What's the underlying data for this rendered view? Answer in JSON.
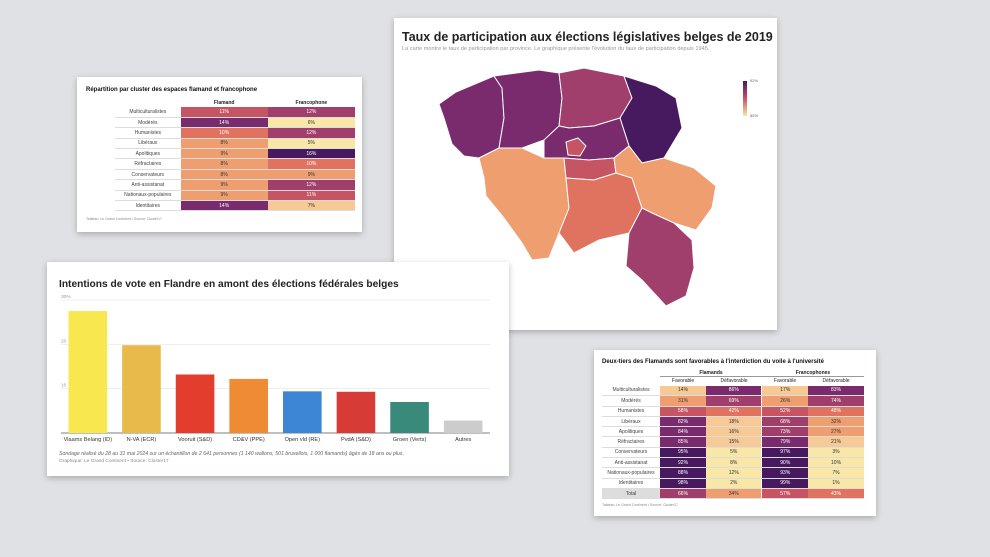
{
  "palette": [
    "#f8e7a6",
    "#f6c995",
    "#ef9e6f",
    "#e0735f",
    "#c65564",
    "#a13f6c",
    "#7a2b6e",
    "#47195f"
  ],
  "card1": {
    "title": "Répartition par cluster des espaces flamand et francophone",
    "source": "Tableau: Le Grand Continent • Source: Cluster17",
    "chart_data": {
      "type": "heatmap",
      "title": "Répartition par cluster des espaces flamand et francophone",
      "columns": [
        "Flamand",
        "Francophone"
      ],
      "rows": [
        "Multiculturalistes",
        "Modérés",
        "Humanistes",
        "Libéraux",
        "Apolitiques",
        "Réfractaires",
        "Conservateurs",
        "Anti-assistanat",
        "Nationaux-populaires",
        "Identitaires"
      ],
      "values": [
        [
          11,
          12
        ],
        [
          14,
          6
        ],
        [
          10,
          12
        ],
        [
          8,
          5
        ],
        [
          9,
          16
        ],
        [
          8,
          10
        ],
        [
          8,
          9
        ],
        [
          9,
          12
        ],
        [
          9,
          11
        ],
        [
          14,
          7
        ]
      ],
      "unit": "%"
    }
  },
  "card2": {
    "title": "Taux de participation aux élections législatives belges de 2019",
    "subtitle": "La carte montre le taux de participation par province. Le graphique présente l'évolution du taux de participation depuis 1945.",
    "legend_max": "92%",
    "legend_min": "85%"
  },
  "card3": {
    "title": "Intentions de vote en Flandre en amont des élections fédérales belges",
    "note": "Sondage réalisé du 28 au 31 mai 2024 sur un échantillon de 2 641 personnes (1 140 wallons, 501 bruxellois, 1 000 flamands) âgés de 18 ans ou plus.",
    "source": "Graphique: Le Grand Continent • Source: Cluster17",
    "chart_data": {
      "type": "bar",
      "categories": [
        "Vlaams Belang (ID)",
        "N-VA (ECR)",
        "Vooruit (S&D)",
        "CD&V (PPE)",
        "Open vld (RE)",
        "PvdA (S&D)",
        "Groen (Verts)",
        "Autres"
      ],
      "values": [
        27.5,
        19.8,
        13.2,
        12.2,
        9.4,
        9.3,
        7.0,
        2.8
      ],
      "colors": [
        "#f8e74e",
        "#e8b94b",
        "#e23d2d",
        "#ef8a35",
        "#3d86d6",
        "#d63b35",
        "#3a8a7c",
        "#cccccc"
      ],
      "yticks": [
        "30%",
        "20",
        "10"
      ],
      "ylim": [
        0,
        30
      ]
    }
  },
  "card4": {
    "title": "Deux-tiers des Flamands sont favorables à l'interdiction du voile à l'université",
    "source": "Tableau: Le Grand Continent • Source: Cluster17",
    "group1": "Flamands",
    "group2": "Francophones",
    "chart_data": {
      "type": "heatmap",
      "title": "Deux-tiers des Flamands sont favorables à l'interdiction du voile à l'université",
      "columns": [
        "Favorable",
        "Défavorable",
        "Favorable",
        "Défavorable"
      ],
      "rows": [
        "Multiculturalistes",
        "Modérés",
        "Humanistes",
        "Libéraux",
        "Apolitiques",
        "Réfractaires",
        "Conservateurs",
        "Anti-assistanat",
        "Nationaux-populaires",
        "Identitaires",
        "Total"
      ],
      "values": [
        [
          14,
          86,
          17,
          83
        ],
        [
          31,
          69,
          26,
          74
        ],
        [
          58,
          42,
          52,
          48
        ],
        [
          82,
          18,
          68,
          32
        ],
        [
          84,
          16,
          73,
          27
        ],
        [
          85,
          15,
          79,
          21
        ],
        [
          95,
          5,
          97,
          3
        ],
        [
          92,
          8,
          90,
          10
        ],
        [
          88,
          12,
          93,
          7
        ],
        [
          98,
          2,
          99,
          1
        ],
        [
          66,
          34,
          57,
          43
        ]
      ],
      "unit": "%"
    }
  }
}
